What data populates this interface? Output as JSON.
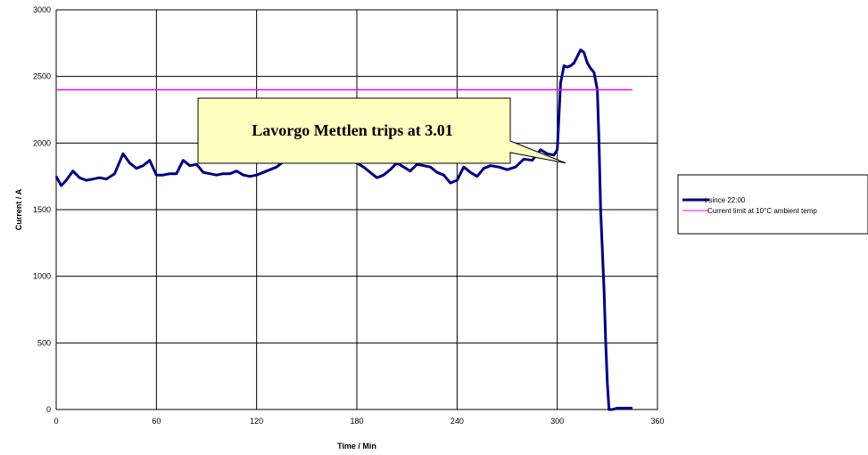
{
  "chart_data": {
    "type": "line",
    "title": "",
    "xlabel": "Time / Min",
    "ylabel": "Current / A",
    "xlim": [
      0,
      360
    ],
    "ylim": [
      0,
      3000
    ],
    "x_ticks": [
      0,
      60,
      120,
      180,
      240,
      300,
      360
    ],
    "y_ticks": [
      0,
      500,
      1000,
      1500,
      2000,
      2500,
      3000
    ],
    "grid": true,
    "legend_position": "right",
    "series": [
      {
        "name": "t since 22:00",
        "color": "#000080",
        "x": [
          0,
          3,
          6,
          10,
          14,
          18,
          22,
          26,
          30,
          35,
          40,
          44,
          48,
          52,
          56,
          60,
          64,
          68,
          72,
          76,
          80,
          84,
          88,
          92,
          96,
          100,
          104,
          108,
          112,
          116,
          120,
          124,
          128,
          132,
          136,
          140,
          150,
          160,
          170,
          176,
          180,
          184,
          188,
          192,
          196,
          200,
          204,
          208,
          212,
          216,
          220,
          224,
          228,
          232,
          236,
          240,
          244,
          248,
          252,
          256,
          260,
          265,
          270,
          275,
          280,
          285,
          290,
          294,
          298,
          300,
          302,
          304,
          306,
          308,
          310,
          312,
          314,
          316,
          318,
          320,
          322,
          324,
          325,
          326,
          327,
          328,
          329,
          330,
          331,
          333,
          336,
          340,
          345
        ],
        "values": [
          1750,
          1680,
          1720,
          1790,
          1740,
          1720,
          1730,
          1740,
          1730,
          1770,
          1920,
          1850,
          1810,
          1830,
          1870,
          1760,
          1760,
          1770,
          1770,
          1870,
          1830,
          1840,
          1780,
          1770,
          1760,
          1770,
          1770,
          1790,
          1760,
          1750,
          1760,
          1780,
          1800,
          1820,
          1860,
          1880,
          1900,
          1920,
          1900,
          1880,
          1850,
          1820,
          1780,
          1740,
          1760,
          1800,
          1850,
          1820,
          1790,
          1840,
          1830,
          1820,
          1780,
          1760,
          1700,
          1720,
          1820,
          1780,
          1750,
          1810,
          1830,
          1820,
          1800,
          1820,
          1880,
          1870,
          1950,
          1920,
          1910,
          1950,
          2450,
          2580,
          2570,
          2580,
          2600,
          2650,
          2700,
          2680,
          2600,
          2560,
          2530,
          2400,
          2000,
          1500,
          1200,
          900,
          500,
          200,
          0,
          0,
          10,
          10,
          10
        ]
      },
      {
        "name": "Current limit at 10°C ambient temp",
        "color": "#ff00ff",
        "x": [
          0,
          345
        ],
        "values": [
          2400,
          2400
        ]
      }
    ],
    "annotations": [
      {
        "text": "Lavorgo Mettlen trips at 3.01",
        "x": 305,
        "y": 1850
      }
    ]
  }
}
